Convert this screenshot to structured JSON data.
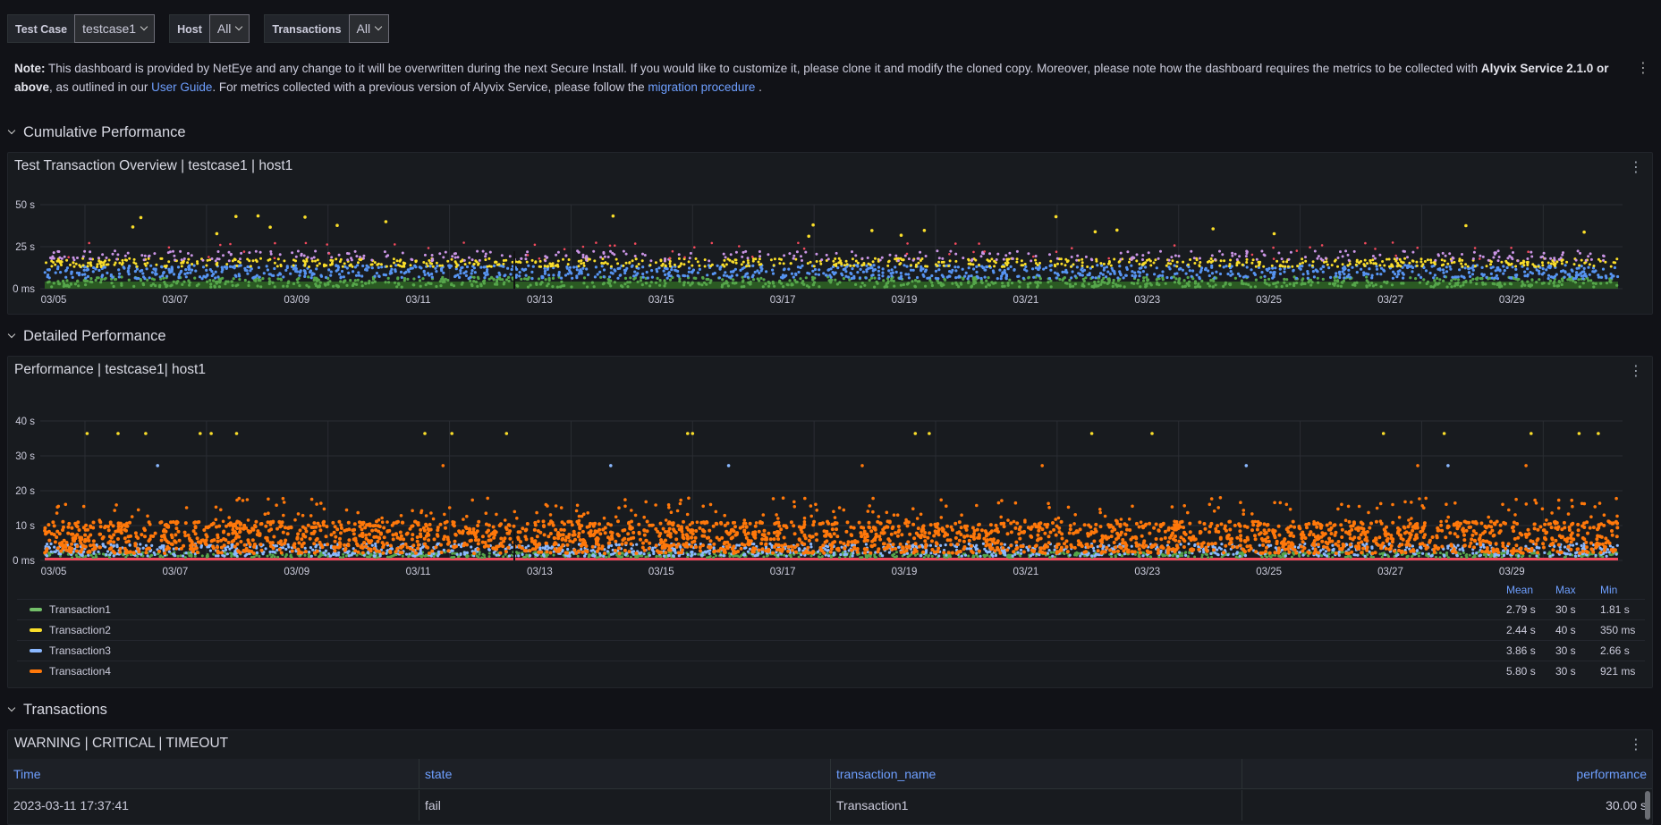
{
  "variables": [
    {
      "label": "Test Case",
      "value": "testcase1"
    },
    {
      "label": "Host",
      "value": "All"
    },
    {
      "label": "Transactions",
      "value": "All"
    }
  ],
  "note": {
    "prefix": "Note:",
    "text1": " This dashboard is provided by NetEye and any change to it will be overwritten during the next Secure Install. If you would like to customize it, please clone it and modify the cloned copy. Moreover, please note how the dashboard requires the metrics to be collected with ",
    "bold": "Alyvix Service 2.1.0 or above",
    "text2": ", as outlined in our ",
    "link1": "User Guide",
    "text3": ". For metrics collected with a previous version of Alyvix Service, please follow the ",
    "link2": "migration procedure",
    "text4": " ."
  },
  "rows": {
    "cumulative": "Cumulative Performance",
    "detailed": "Detailed Performance",
    "transactions": "Transactions"
  },
  "panel_menu_glyph": "⋮",
  "colors": {
    "green": "#56a64b",
    "yellow": "#fade2a",
    "blue": "#5794f2",
    "lightblue": "#8ab8ff",
    "purple": "#ca95e5",
    "orange": "#ff780a",
    "red": "#f2495c",
    "link": "#6e9fff"
  },
  "chart_data": [
    {
      "type": "scatter",
      "title": "Test Transaction Overview | testcase1 | host1",
      "x_ticks": [
        "03/05",
        "03/07",
        "03/09",
        "03/11",
        "03/13",
        "03/15",
        "03/17",
        "03/19",
        "03/21",
        "03/23",
        "03/25",
        "03/27",
        "03/29"
      ],
      "y_ticks": [
        "0 ms",
        "25 s",
        "50 s"
      ],
      "ylim": [
        0,
        60
      ],
      "grid": true,
      "stacked": true
    },
    {
      "type": "scatter",
      "title": "Performance | testcase1| host1",
      "x_ticks": [
        "03/05",
        "03/07",
        "03/09",
        "03/11",
        "03/13",
        "03/15",
        "03/17",
        "03/19",
        "03/21",
        "03/23",
        "03/25",
        "03/27",
        "03/29"
      ],
      "y_ticks": [
        "0 ms",
        "10 s",
        "20 s",
        "30 s",
        "40 s"
      ],
      "ylim": [
        0,
        44
      ],
      "grid": true,
      "legend": {
        "columns": [
          "Mean",
          "Max",
          "Min"
        ],
        "series": [
          {
            "name": "Transaction1",
            "color": "#73bf69",
            "mean": "2.79 s",
            "max": "30 s",
            "min": "1.81 s"
          },
          {
            "name": "Transaction2",
            "color": "#fade2a",
            "mean": "2.44 s",
            "max": "40 s",
            "min": "350 ms"
          },
          {
            "name": "Transaction3",
            "color": "#8ab8ff",
            "mean": "3.86 s",
            "max": "30 s",
            "min": "2.66 s"
          },
          {
            "name": "Transaction4",
            "color": "#ff780a",
            "mean": "5.80 s",
            "max": "30 s",
            "min": "921 ms"
          }
        ]
      }
    }
  ],
  "table": {
    "title": "WARNING | CRITICAL | TIMEOUT",
    "columns": [
      "Time",
      "state",
      "transaction_name",
      "performance"
    ],
    "rows": [
      [
        "2023-03-11 17:37:41",
        "fail",
        "Transaction1",
        "30.00 s"
      ]
    ]
  }
}
